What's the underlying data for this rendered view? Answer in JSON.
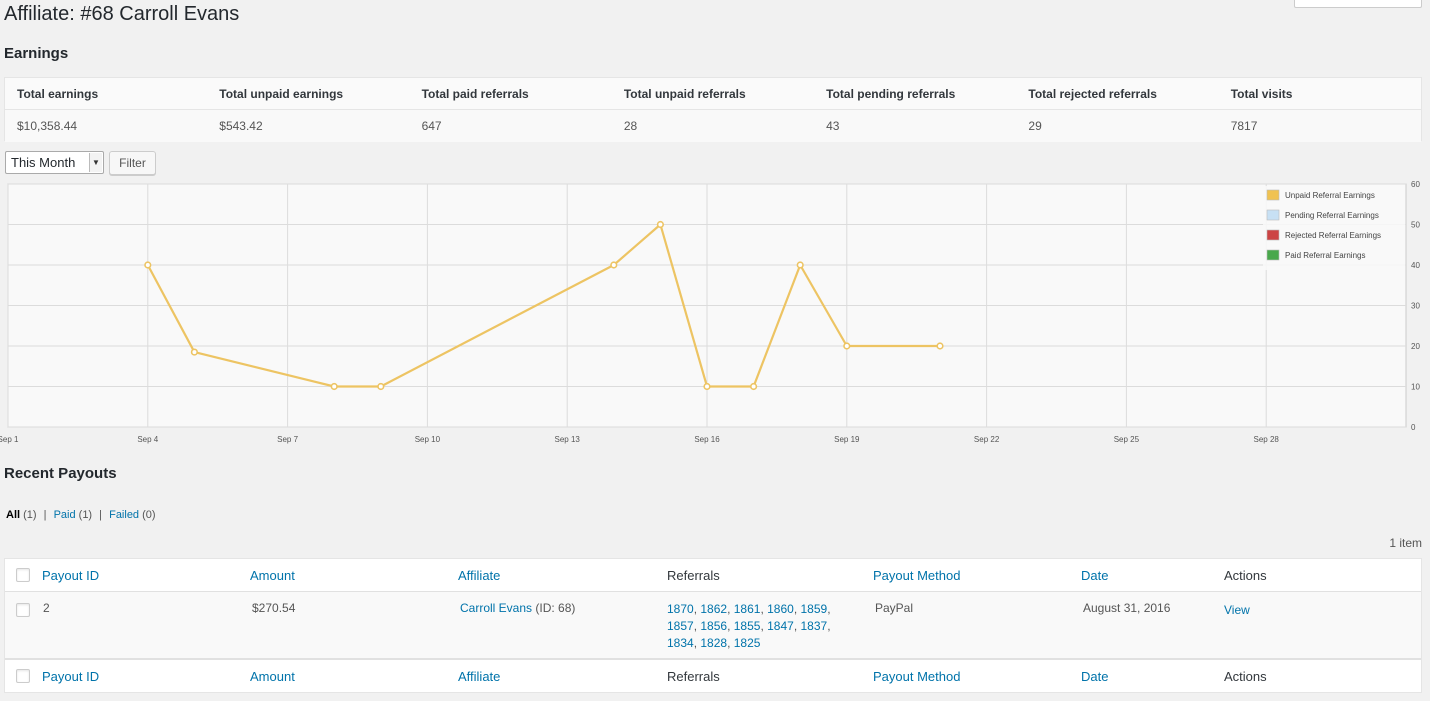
{
  "page": {
    "title": "Affiliate: #68 Carroll Evans"
  },
  "earnings": {
    "title": "Earnings",
    "headers": [
      "Total earnings",
      "Total unpaid earnings",
      "Total paid referrals",
      "Total unpaid referrals",
      "Total pending referrals",
      "Total rejected referrals",
      "Total visits"
    ],
    "values": [
      "$10,358.44",
      "$543.42",
      "647",
      "28",
      "43",
      "29",
      "7817"
    ]
  },
  "filter": {
    "selected": "This Month",
    "button_label": "Filter"
  },
  "chart_data": {
    "type": "line",
    "x_ticks": [
      "Sep 1",
      "Sep 4",
      "Sep 7",
      "Sep 10",
      "Sep 13",
      "Sep 16",
      "Sep 19",
      "Sep 22",
      "Sep 25",
      "Sep 28"
    ],
    "y_ticks": [
      "0",
      "10",
      "20",
      "30",
      "40",
      "50",
      "60"
    ],
    "ylim": [
      0,
      60
    ],
    "xlim": [
      1,
      31
    ],
    "legend_position": "top-right",
    "legend": [
      {
        "name": "Unpaid Referral Earnings",
        "color": "#f0c251"
      },
      {
        "name": "Pending Referral Earnings",
        "color": "#c7e0f4"
      },
      {
        "name": "Rejected Referral Earnings",
        "color": "#cc4444"
      },
      {
        "name": "Paid Referral Earnings",
        "color": "#49a84c"
      }
    ],
    "series": [
      {
        "name": "Unpaid Referral Earnings",
        "color": "#edc463",
        "x": [
          4,
          5,
          8,
          9,
          14,
          15,
          16,
          17,
          18,
          19,
          21
        ],
        "y": [
          40,
          18.5,
          10,
          10,
          40,
          50,
          10,
          10,
          40,
          20,
          20
        ]
      }
    ]
  },
  "payouts": {
    "title": "Recent Payouts",
    "views": [
      {
        "label": "All",
        "count": "(1)",
        "current": true
      },
      {
        "label": "Paid",
        "count": "(1)",
        "current": false
      },
      {
        "label": "Failed",
        "count": "(0)",
        "current": false
      }
    ],
    "views_separator": "|",
    "items_count": "1 item",
    "columns": [
      "Payout ID",
      "Amount",
      "Affiliate",
      "Referrals",
      "Payout Method",
      "Date",
      "Actions"
    ],
    "rows": [
      {
        "id": "2",
        "amount": "$270.54",
        "affiliate_name": "Carroll Evans",
        "affiliate_suffix": " (ID: 68)",
        "referrals": [
          "1870",
          "1862",
          "1861",
          "1860",
          "1859",
          "1857",
          "1856",
          "1855",
          "1847",
          "1837",
          "1834",
          "1828",
          "1825"
        ],
        "method": "PayPal",
        "date": "August 31, 2016",
        "action": "View"
      }
    ]
  }
}
